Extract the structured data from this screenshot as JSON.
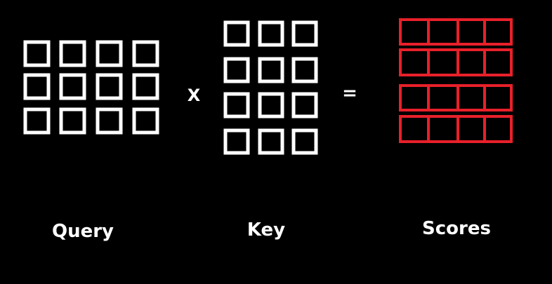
{
  "labels": {
    "query": "Query",
    "key": "Key",
    "scores": "Scores"
  },
  "operators": {
    "multiply": "X",
    "equals": "="
  },
  "matrices": {
    "query": {
      "rows": 3,
      "cols": 4,
      "color": "#ffffff"
    },
    "key": {
      "rows": 4,
      "cols": 3,
      "color": "#ffffff"
    },
    "scores": {
      "rows": 4,
      "cols": 4,
      "color": "#e8202a"
    }
  }
}
